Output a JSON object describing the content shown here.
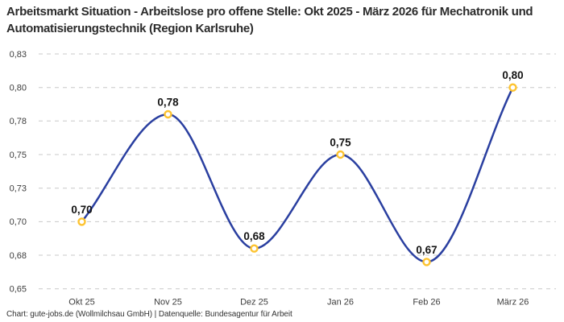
{
  "header": {
    "title": "Arbeitsmarkt Situation - Arbeitslose pro offene Stelle: Okt 2025 - März 2026 für Mechatronik und Automatisierungstechnik (Region Karlsruhe)"
  },
  "footer": {
    "credit": "Chart: gute-jobs.de (Wollmilchsau GmbH) | Datenquelle: Bundesagentur für Arbeit"
  },
  "chart_data": {
    "type": "line",
    "title": "Arbeitsmarkt Situation - Arbeitslose pro offene Stelle: Okt 2025 - März 2026 für Mechatronik und Automatisierungstechnik (Region Karlsruhe)",
    "categories": [
      "Okt 25",
      "Nov 25",
      "Dez 25",
      "Jan 26",
      "Feb 26",
      "März 26"
    ],
    "values": [
      0.7,
      0.78,
      0.68,
      0.75,
      0.67,
      0.8
    ],
    "point_labels": [
      "0,70",
      "0,78",
      "0,68",
      "0,75",
      "0,67",
      "0,80"
    ],
    "series_name": "Arbeitslose pro offene Stelle",
    "xlabel": "",
    "ylabel": "",
    "ylim": [
      0.65,
      0.825
    ],
    "yticks": [
      {
        "value": 0.825,
        "label": "0,83"
      },
      {
        "value": 0.8,
        "label": "0,80"
      },
      {
        "value": 0.775,
        "label": "0,78"
      },
      {
        "value": 0.75,
        "label": "0,75"
      },
      {
        "value": 0.725,
        "label": "0,73"
      },
      {
        "value": 0.7,
        "label": "0,70"
      },
      {
        "value": 0.675,
        "label": "0,68"
      },
      {
        "value": 0.65,
        "label": "0,65"
      }
    ],
    "grid": "horizontal-dashed",
    "legend": "none",
    "line_smoothing": "monotone",
    "marker": "open-circle",
    "colors": {
      "line": "#2a3fa0",
      "marker_ring": "#fdc32f",
      "marker_fill": "#ffffff",
      "gridline": "#c8c8c8",
      "point_label_text": "#141414",
      "axis_text": "#3d3d3d",
      "title_text": "#2b2b2b",
      "background": "#ffffff"
    }
  }
}
